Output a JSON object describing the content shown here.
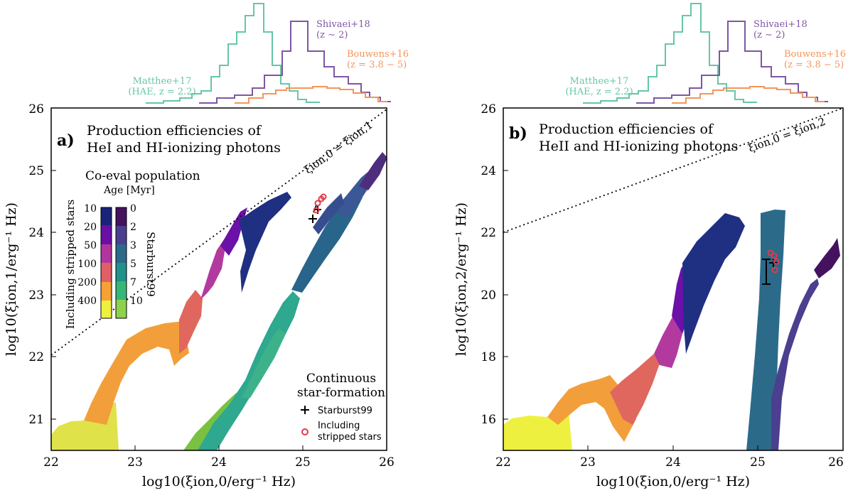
{
  "chart_data": [
    {
      "type": "area",
      "panel": "a",
      "panel_label": "a)",
      "title_lines": [
        "Production efficiencies of",
        "HeI and HI-ionizing photons"
      ],
      "xlabel": "log10(ξion,0/erg⁻¹ Hz)",
      "ylabel": "log10(ξion,1/erg⁻¹ Hz)",
      "xlim": [
        22,
        26
      ],
      "ylim": [
        20.5,
        26
      ],
      "xticks": [
        "22",
        "23",
        "24",
        "25",
        "26"
      ],
      "yticks": [
        "21",
        "22",
        "23",
        "24",
        "25",
        "26"
      ],
      "one_to_one_label": "ξion,0 = ξion,1",
      "colorbar": {
        "heading": "Co-eval population",
        "subheading": "Age [Myr]",
        "left_label": "Including stripped stars",
        "left_ticks": [
          "10",
          "20",
          "50",
          "100",
          "200",
          "400"
        ],
        "right_label": "Starburst99",
        "right_ticks": [
          "0",
          "2",
          "3",
          "5",
          "7",
          "10"
        ]
      },
      "legend": {
        "title_lines": [
          "Continuous",
          "star-formation"
        ],
        "entries": [
          {
            "label": "Starburst99",
            "marker": "+"
          },
          {
            "label_lines": [
              "Including",
              "stripped stars"
            ],
            "marker": "o"
          }
        ]
      },
      "continuous_sfr": {
        "starburst99": [
          [
            25.05,
            24.25
          ],
          [
            25.1,
            24.3
          ],
          [
            25.15,
            24.5
          ]
        ],
        "stripped": [
          [
            25.12,
            24.35
          ],
          [
            25.15,
            24.45
          ],
          [
            25.2,
            24.58
          ]
        ]
      },
      "histograms": [
        {
          "name": "Matthee+17",
          "note": "(HAE, z = 2.2)",
          "color": "#66c7a5"
        },
        {
          "name": "Shivaei+18",
          "note": "(z ∼ 2)",
          "color": "#7e56a6"
        },
        {
          "name": "Bouwens+16",
          "note": "(z = 3.8 − 5)",
          "color": "#f4955b"
        }
      ]
    },
    {
      "type": "area",
      "panel": "b",
      "panel_label": "b)",
      "title_lines": [
        "Production efficiencies of",
        "HeII and HI-ionizing photons"
      ],
      "xlabel": "log10(ξion,0/erg⁻¹ Hz)",
      "ylabel": "log10(ξion,2/erg⁻¹ Hz)",
      "xlim": [
        22,
        26
      ],
      "ylim": [
        15,
        26
      ],
      "xticks": [
        "22",
        "23",
        "24",
        "25",
        "26"
      ],
      "yticks": [
        "16",
        "18",
        "20",
        "22",
        "24",
        "26"
      ],
      "one_to_one_label": "ξion,0 = ξion,2",
      "continuous_sfr": {
        "starburst99": [
          [
            25.1,
            20.4
          ],
          [
            25.12,
            21.1
          ]
        ],
        "stripped": [
          [
            25.15,
            21.35
          ],
          [
            25.2,
            21.2
          ],
          [
            25.22,
            20.8
          ]
        ]
      },
      "histograms": [
        {
          "name": "Matthee+17",
          "note": "(HAE, z = 2.2)",
          "color": "#66c7a5"
        },
        {
          "name": "Shivaei+18",
          "note": "(z ∼ 2)",
          "color": "#7e56a6"
        },
        {
          "name": "Bouwens+16",
          "note": "(z = 3.8 − 5)",
          "color": "#f4955b"
        }
      ]
    }
  ]
}
